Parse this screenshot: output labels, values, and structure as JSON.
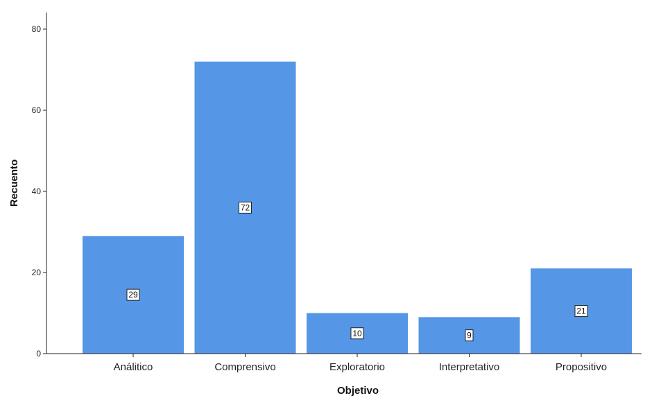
{
  "chart_data": {
    "type": "bar",
    "categories": [
      "Análitico",
      "Comprensivo",
      "Exploratorio",
      "Interpretativo",
      "Propositivo"
    ],
    "values": [
      29,
      72,
      10,
      9,
      21
    ],
    "xlabel": "Objetivo",
    "ylabel": "Recuento",
    "ylim": [
      0,
      80
    ],
    "yticks": [
      0,
      20,
      40,
      60,
      80
    ],
    "grid": false,
    "bar_color": "#5596e6",
    "data_labels": true
  }
}
